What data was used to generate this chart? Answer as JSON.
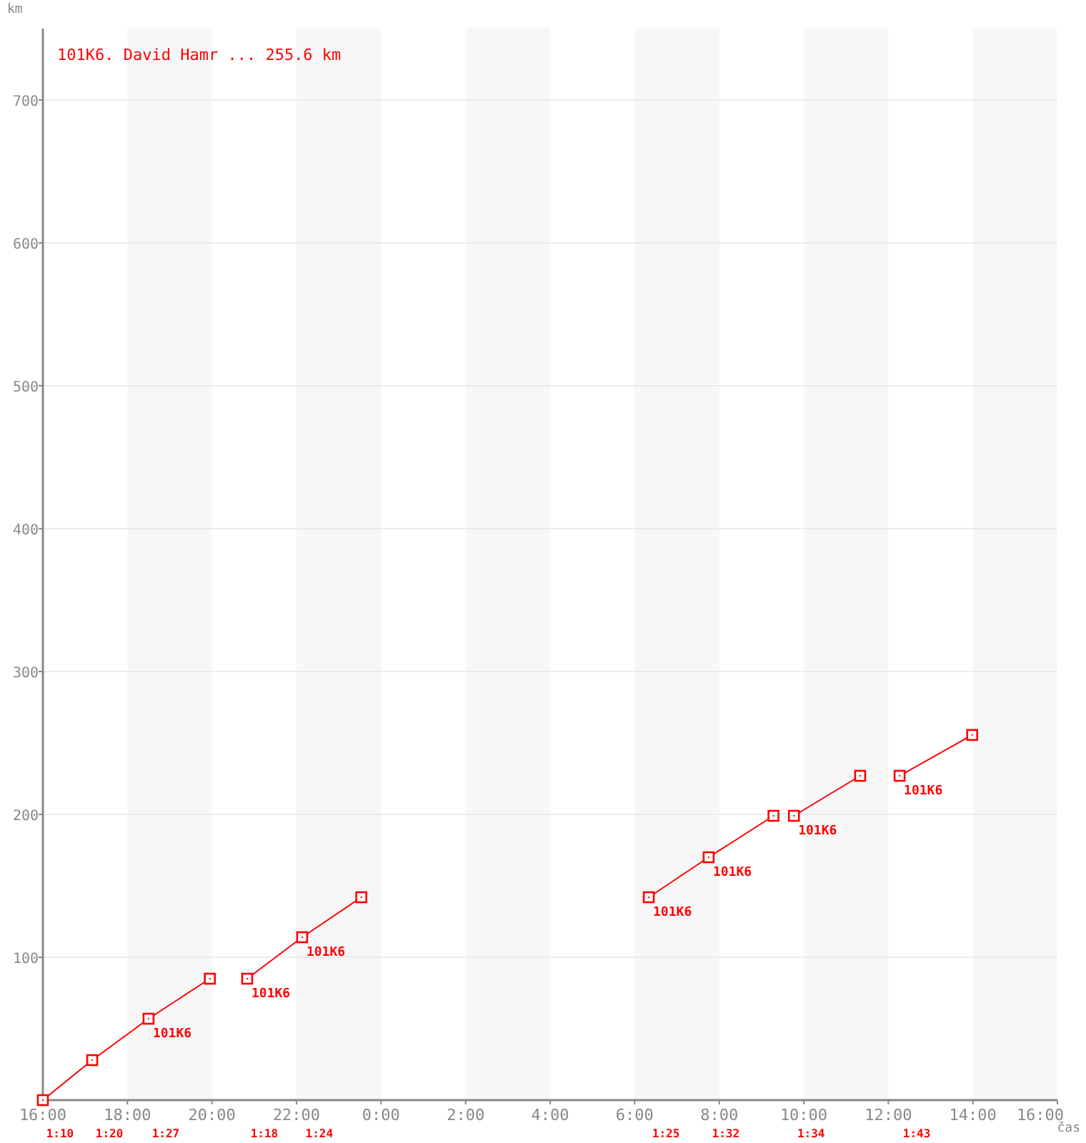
{
  "chart_data": {
    "type": "line",
    "title": "101K6. David Hamr ... 255.6 km",
    "xlabel": "čas",
    "ylabel": "km",
    "xlim": [
      "2000-01-01T16:00",
      "2000-01-02T16:00"
    ],
    "xticks": [
      {
        "value": "2000-01-01T16:00",
        "label": "16:00"
      },
      {
        "value": "2000-01-01T18:00",
        "label": "18:00"
      },
      {
        "value": "2000-01-01T20:00",
        "label": "20:00"
      },
      {
        "value": "2000-01-01T22:00",
        "label": "22:00"
      },
      {
        "value": "2000-01-02T00:00",
        "label": "0:00"
      },
      {
        "value": "2000-01-02T02:00",
        "label": "2:00"
      },
      {
        "value": "2000-01-02T04:00",
        "label": "4:00"
      },
      {
        "value": "2000-01-02T06:00",
        "label": "6:00"
      },
      {
        "value": "2000-01-02T08:00",
        "label": "8:00"
      },
      {
        "value": "2000-01-02T10:00",
        "label": "10:00"
      },
      {
        "value": "2000-01-02T12:00",
        "label": "12:00"
      },
      {
        "value": "2000-01-02T14:00",
        "label": "14:00"
      },
      {
        "value": "2000-01-02T16:00",
        "label": "16:00"
      }
    ],
    "ylim": [
      0,
      750
    ],
    "yticks": [
      100,
      200,
      300,
      400,
      500,
      600,
      700
    ],
    "grid": "y",
    "marker": "square",
    "line_style": "solid",
    "series": [
      {
        "color": "#ff0000",
        "x": [
          "2000-01-01T16:00",
          "2000-01-01T17:10",
          "2000-01-01T18:30",
          "2000-01-01T19:57"
        ],
        "values": [
          0,
          28,
          57,
          85
        ]
      },
      {
        "color": "#ff0000",
        "x": [
          "2000-01-01T20:50",
          "2000-01-01T22:08",
          "2000-01-01T23:32"
        ],
        "values": [
          85,
          114,
          142
        ]
      },
      {
        "color": "#ff0000",
        "x": [
          "2000-01-02T06:20",
          "2000-01-02T07:45",
          "2000-01-02T09:17"
        ],
        "values": [
          142,
          170,
          199
        ]
      },
      {
        "color": "#ff0000",
        "x": [
          "2000-01-02T09:46",
          "2000-01-02T11:20"
        ],
        "values": [
          199,
          227
        ]
      },
      {
        "color": "#ff0000",
        "x": [
          "2000-01-02T12:16",
          "2000-01-02T13:59"
        ],
        "values": [
          227,
          255.6
        ]
      }
    ],
    "bands": [
      {
        "axis": "x",
        "from": "2000-01-01T18:00",
        "to": "2000-01-01T20:00",
        "color": "#f7f7f7"
      },
      {
        "axis": "x",
        "from": "2000-01-01T22:00",
        "to": "2000-01-02T00:00",
        "color": "#f7f7f7"
      },
      {
        "axis": "x",
        "from": "2000-01-02T02:00",
        "to": "2000-01-02T04:00",
        "color": "#f7f7f7"
      },
      {
        "axis": "x",
        "from": "2000-01-02T06:00",
        "to": "2000-01-02T08:00",
        "color": "#f7f7f7"
      },
      {
        "axis": "x",
        "from": "2000-01-02T10:00",
        "to": "2000-01-02T12:00",
        "color": "#f7f7f7"
      },
      {
        "axis": "x",
        "from": "2000-01-02T14:00",
        "to": "2000-01-02T16:00",
        "color": "#f7f7f7"
      }
    ],
    "annotations": [
      {
        "text": "101K6",
        "x": "2000-01-01T18:30",
        "y": 57
      },
      {
        "text": "101K6",
        "x": "2000-01-01T20:50",
        "y": 85
      },
      {
        "text": "101K6",
        "x": "2000-01-01T22:08",
        "y": 114
      },
      {
        "text": "101K6",
        "x": "2000-01-02T06:20",
        "y": 142
      },
      {
        "text": "101K6",
        "x": "2000-01-02T07:45",
        "y": 170
      },
      {
        "text": "101K6",
        "x": "2000-01-02T09:46",
        "y": 199
      },
      {
        "text": "101K6",
        "x": "2000-01-02T12:16",
        "y": 227
      },
      "1:10",
      "1:20",
      "1:27",
      "1:18",
      "1:24",
      "1:25",
      "1:32",
      "1:34",
      "1:43"
    ]
  }
}
